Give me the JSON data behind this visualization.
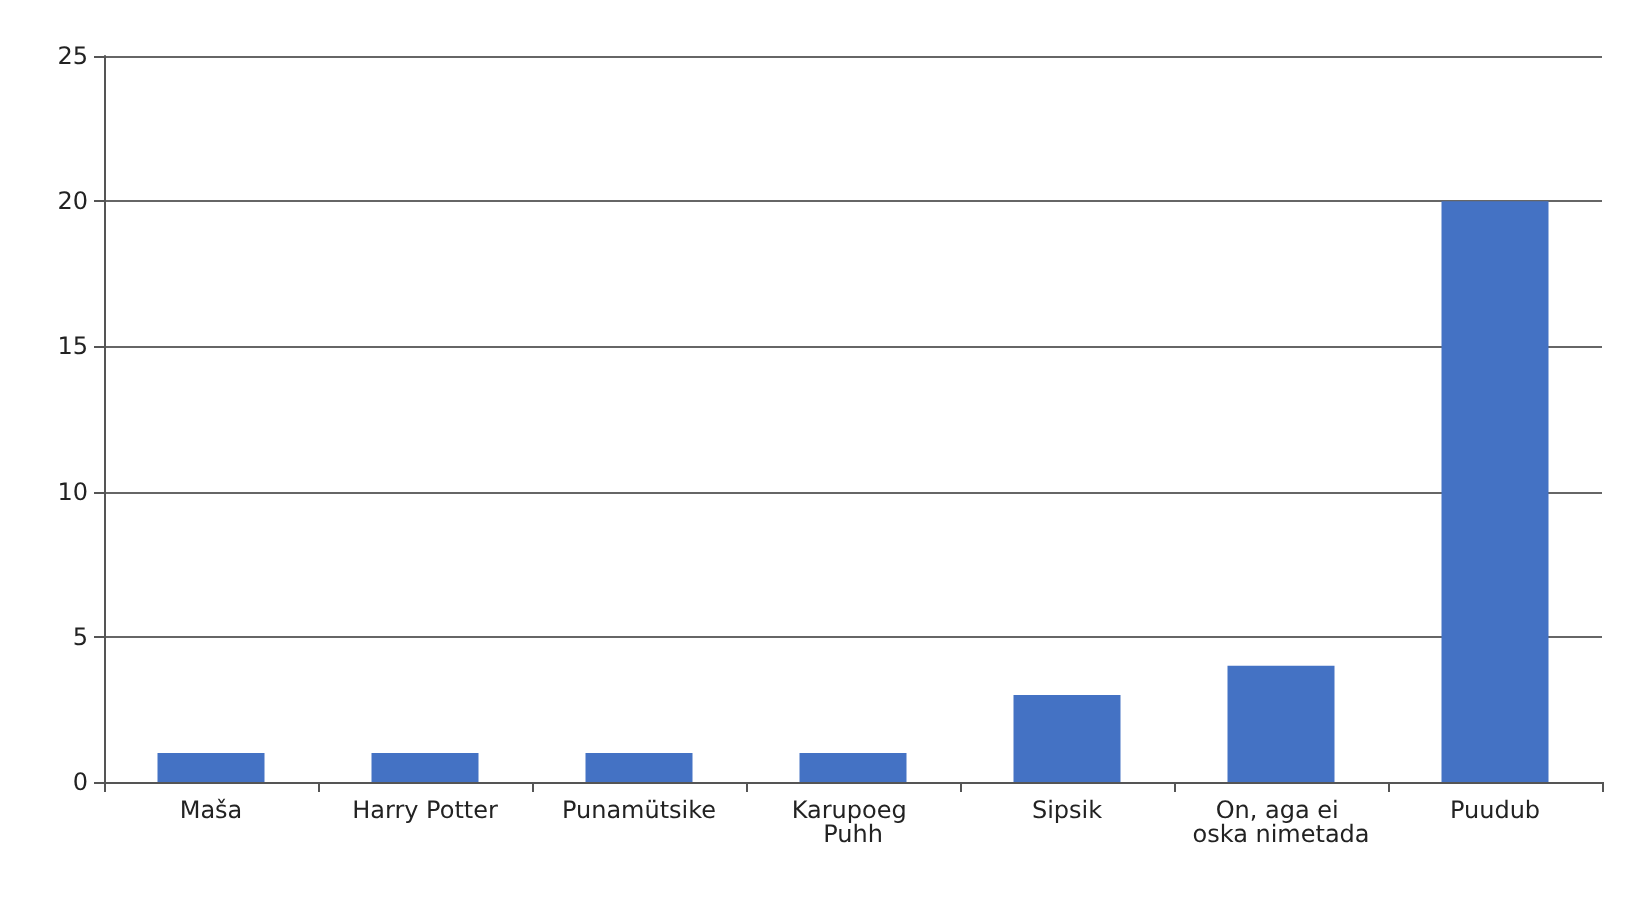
{
  "chart_data": {
    "type": "bar",
    "categories": [
      "Maša",
      "Harry Potter",
      "Punamütsike",
      "Karupoeg Puhh",
      "Sipsik",
      "On, aga ei oska nimetada",
      "Puudub"
    ],
    "values": [
      1,
      1,
      1,
      1,
      3,
      4,
      20
    ],
    "color": "#4472c4",
    "ylim": [
      0,
      25
    ],
    "yticks": [
      0,
      5,
      10,
      15,
      20,
      25
    ],
    "grid": "y"
  }
}
